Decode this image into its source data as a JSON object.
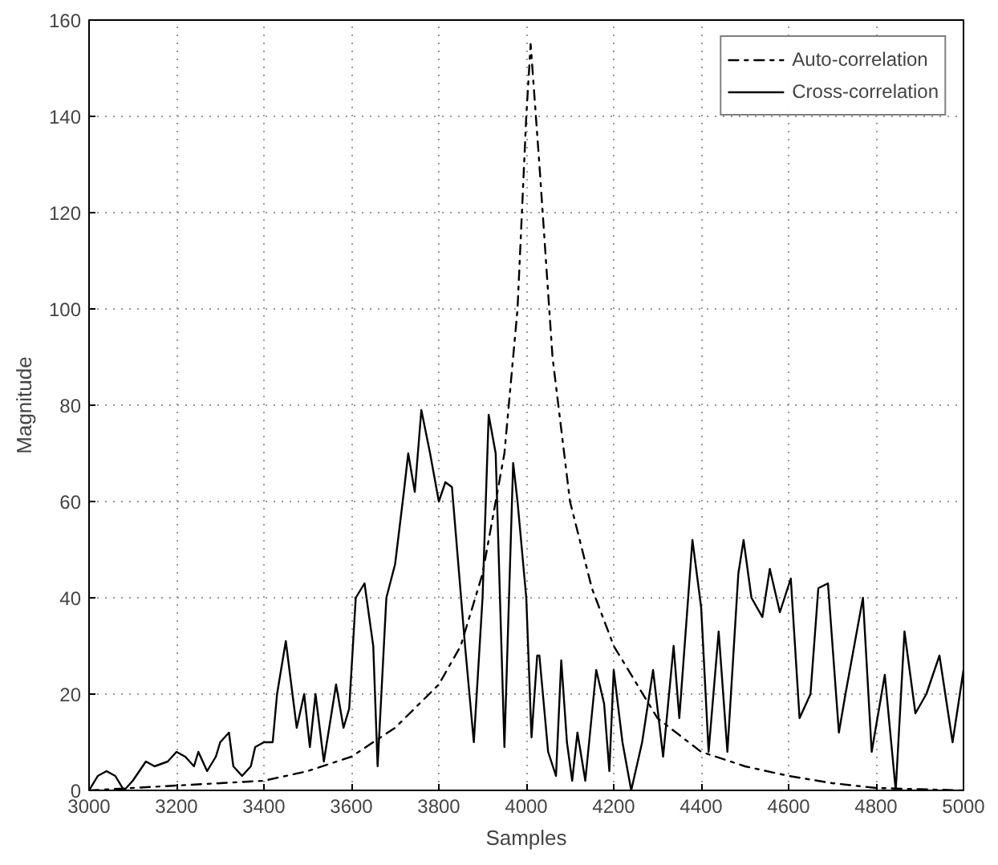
{
  "chart_data": {
    "type": "line",
    "xlabel": "Samples",
    "ylabel": "Magnitude",
    "xlim": [
      3000,
      5000
    ],
    "ylim": [
      0,
      160
    ],
    "xticks": [
      3000,
      3200,
      3400,
      3600,
      3800,
      4000,
      4200,
      4400,
      4600,
      4800,
      5000
    ],
    "yticks": [
      0,
      20,
      40,
      60,
      80,
      100,
      120,
      140,
      160
    ],
    "grid": true,
    "legend": "top right",
    "series": [
      {
        "name": "Auto-correlation",
        "color": "#000000",
        "line_style": "dashdot",
        "x": [
          3000,
          3200,
          3400,
          3500,
          3600,
          3700,
          3800,
          3850,
          3900,
          3950,
          3980,
          4000,
          4010,
          4030,
          4060,
          4100,
          4150,
          4200,
          4300,
          4400,
          4500,
          4600,
          4700,
          4800,
          5000
        ],
        "values": [
          0,
          1,
          2,
          4,
          7,
          13,
          22,
          30,
          45,
          70,
          100,
          140,
          155,
          130,
          90,
          60,
          42,
          30,
          15,
          8,
          5,
          3,
          1.5,
          0.5,
          0
        ]
      },
      {
        "name": "Cross-correlation",
        "color": "#000000",
        "line_style": "solid",
        "x": [
          3000,
          3020,
          3040,
          3060,
          3080,
          3100,
          3130,
          3150,
          3180,
          3200,
          3220,
          3240,
          3250,
          3270,
          3290,
          3300,
          3320,
          3330,
          3350,
          3370,
          3380,
          3400,
          3420,
          3430,
          3450,
          3475,
          3492,
          3505,
          3518,
          3537,
          3565,
          3582,
          3595,
          3610,
          3630,
          3650,
          3660,
          3680,
          3700,
          3720,
          3730,
          3745,
          3760,
          3780,
          3800,
          3815,
          3830,
          3860,
          3880,
          3900,
          3914,
          3930,
          3950,
          3970,
          3980,
          4000,
          4012,
          4025,
          4030,
          4050,
          4068,
          4080,
          4093,
          4105,
          4117,
          4135,
          4160,
          4178,
          4190,
          4200,
          4220,
          4240,
          4265,
          4290,
          4313,
          4337,
          4350,
          4380,
          4400,
          4417,
          4440,
          4460,
          4485,
          4497,
          4515,
          4540,
          4557,
          4580,
          4605,
          4625,
          4650,
          4668,
          4690,
          4715,
          4730,
          4770,
          4790,
          4820,
          4845,
          4865,
          4890,
          4915,
          4945,
          4975,
          5000
        ],
        "values": [
          0,
          3,
          4,
          3,
          0,
          2,
          6,
          5,
          6,
          8,
          7,
          5,
          8,
          4,
          7,
          10,
          12,
          5,
          3,
          5,
          9,
          10,
          10,
          20,
          31,
          13,
          20,
          9,
          20,
          6,
          22,
          13,
          17,
          40,
          43,
          30,
          5,
          40,
          47,
          62,
          70,
          62,
          79,
          70,
          60,
          64,
          63,
          30,
          10,
          40,
          78,
          70,
          9,
          68,
          60,
          40,
          11,
          28,
          28,
          8,
          3,
          27,
          10,
          2,
          12,
          2,
          25,
          18,
          4,
          25,
          10,
          0,
          10,
          25,
          7,
          30,
          15,
          52,
          38,
          8,
          33,
          8,
          45,
          52,
          40,
          36,
          46,
          37,
          44,
          15,
          20,
          42,
          43,
          12,
          20,
          40,
          8,
          24,
          0,
          33,
          16,
          20,
          28,
          10,
          25
        ]
      }
    ]
  }
}
